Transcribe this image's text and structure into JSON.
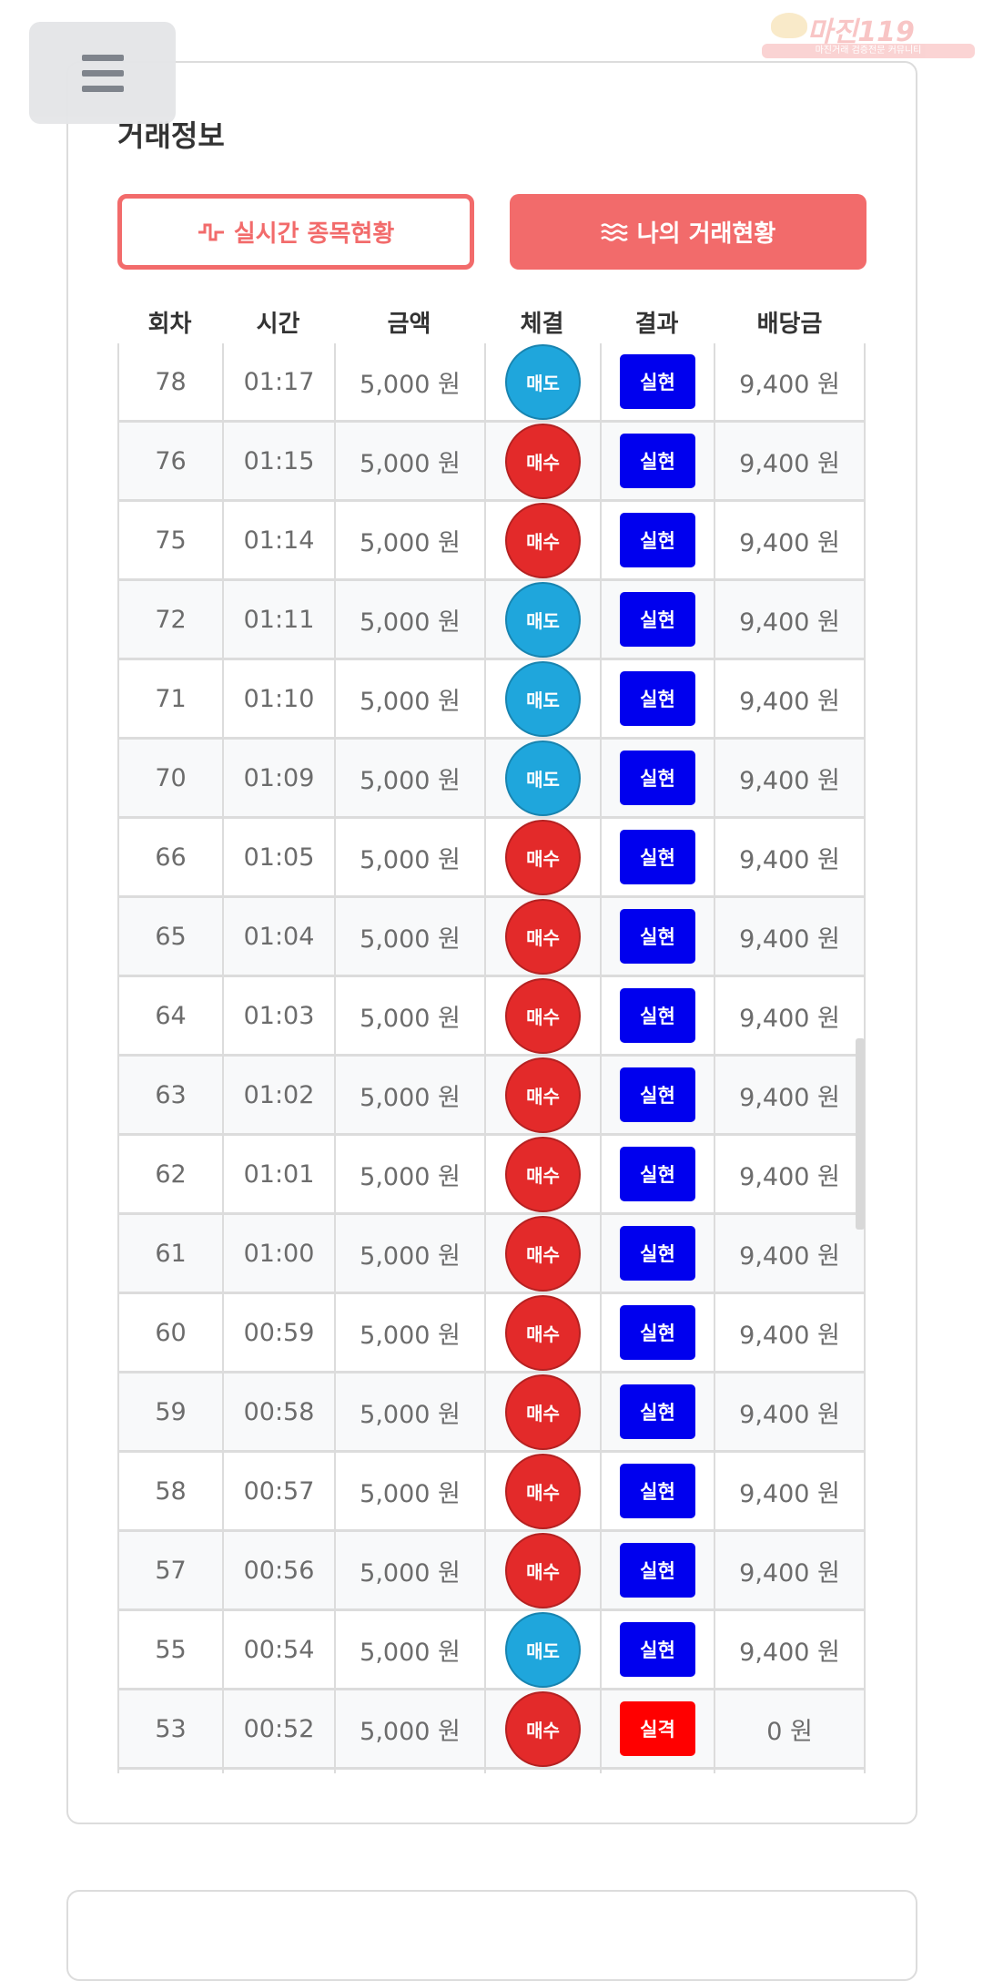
{
  "logo": {
    "text": "마진119",
    "tagline": "마진거래 검증전문 커뮤니티"
  },
  "title": "거래정보",
  "buttons": {
    "live": "실시간 종목현황",
    "mine": "나의 거래현황"
  },
  "colors": {
    "accent": "#f26b6b",
    "sell": "#1fa6dc",
    "buy": "#e32a2a",
    "win": "#0000ee",
    "lose": "#ff0000"
  },
  "table": {
    "headers": [
      "회차",
      "시간",
      "금액",
      "체결",
      "결과",
      "배당금"
    ],
    "rows": [
      {
        "round": "78",
        "time": "01:17",
        "amount": "5,000 원",
        "side": "매도",
        "result": "실현",
        "payout": "9,400 원"
      },
      {
        "round": "76",
        "time": "01:15",
        "amount": "5,000 원",
        "side": "매수",
        "result": "실현",
        "payout": "9,400 원"
      },
      {
        "round": "75",
        "time": "01:14",
        "amount": "5,000 원",
        "side": "매수",
        "result": "실현",
        "payout": "9,400 원"
      },
      {
        "round": "72",
        "time": "01:11",
        "amount": "5,000 원",
        "side": "매도",
        "result": "실현",
        "payout": "9,400 원"
      },
      {
        "round": "71",
        "time": "01:10",
        "amount": "5,000 원",
        "side": "매도",
        "result": "실현",
        "payout": "9,400 원"
      },
      {
        "round": "70",
        "time": "01:09",
        "amount": "5,000 원",
        "side": "매도",
        "result": "실현",
        "payout": "9,400 원"
      },
      {
        "round": "66",
        "time": "01:05",
        "amount": "5,000 원",
        "side": "매수",
        "result": "실현",
        "payout": "9,400 원"
      },
      {
        "round": "65",
        "time": "01:04",
        "amount": "5,000 원",
        "side": "매수",
        "result": "실현",
        "payout": "9,400 원"
      },
      {
        "round": "64",
        "time": "01:03",
        "amount": "5,000 원",
        "side": "매수",
        "result": "실현",
        "payout": "9,400 원"
      },
      {
        "round": "63",
        "time": "01:02",
        "amount": "5,000 원",
        "side": "매수",
        "result": "실현",
        "payout": "9,400 원"
      },
      {
        "round": "62",
        "time": "01:01",
        "amount": "5,000 원",
        "side": "매수",
        "result": "실현",
        "payout": "9,400 원"
      },
      {
        "round": "61",
        "time": "01:00",
        "amount": "5,000 원",
        "side": "매수",
        "result": "실현",
        "payout": "9,400 원"
      },
      {
        "round": "60",
        "time": "00:59",
        "amount": "5,000 원",
        "side": "매수",
        "result": "실현",
        "payout": "9,400 원"
      },
      {
        "round": "59",
        "time": "00:58",
        "amount": "5,000 원",
        "side": "매수",
        "result": "실현",
        "payout": "9,400 원"
      },
      {
        "round": "58",
        "time": "00:57",
        "amount": "5,000 원",
        "side": "매수",
        "result": "실현",
        "payout": "9,400 원"
      },
      {
        "round": "57",
        "time": "00:56",
        "amount": "5,000 원",
        "side": "매수",
        "result": "실현",
        "payout": "9,400 원"
      },
      {
        "round": "55",
        "time": "00:54",
        "amount": "5,000 원",
        "side": "매도",
        "result": "실현",
        "payout": "9,400 원"
      },
      {
        "round": "53",
        "time": "00:52",
        "amount": "5,000 원",
        "side": "매수",
        "result": "실격",
        "payout": "0 원"
      }
    ]
  }
}
